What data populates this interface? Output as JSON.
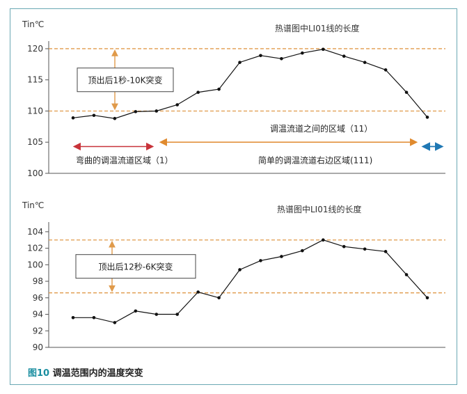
{
  "figure": {
    "caption_label": "图10",
    "caption_text": "调温范围内的温度突变"
  },
  "chart_data": [
    {
      "type": "line",
      "title": "热谱图中LI01线的长度",
      "ylabel": "Tin℃",
      "ylim": [
        100,
        121
      ],
      "yticks": [
        100,
        105,
        110,
        115,
        120
      ],
      "values": [
        108.9,
        109.3,
        108.8,
        109.9,
        110.0,
        111.0,
        113.0,
        113.5,
        117.8,
        118.9,
        118.4,
        119.3,
        119.9,
        118.8,
        117.8,
        116.6,
        113.0,
        109.0
      ],
      "thresholds": [
        120,
        110
      ],
      "threshold_color": "#e09a4a",
      "annotation": "顶出后1秒-10K突变",
      "regions": [
        {
          "label": "弯曲的调温流道区域（1）",
          "color": "#c8333a"
        },
        {
          "label": "调温流道之间的区域（11）",
          "color": "#e08a2e"
        },
        {
          "label": "简单的调温流道右边区域(111)",
          "color": "#1f78b4"
        }
      ]
    },
    {
      "type": "line",
      "title": "热谱图中LI01线的长度",
      "ylabel": "Tin℃",
      "ylim": [
        90,
        105
      ],
      "yticks": [
        90,
        92,
        94,
        96,
        98,
        100,
        102,
        104
      ],
      "values": [
        93.6,
        93.6,
        93.0,
        94.4,
        94.0,
        94.0,
        96.7,
        96.0,
        99.4,
        100.5,
        101.0,
        101.7,
        103.0,
        102.2,
        101.9,
        101.6,
        98.8,
        96.0
      ],
      "thresholds": [
        103,
        96.6
      ],
      "threshold_color": "#e09a4a",
      "annotation": "顶出后12秒-6K突变"
    }
  ]
}
